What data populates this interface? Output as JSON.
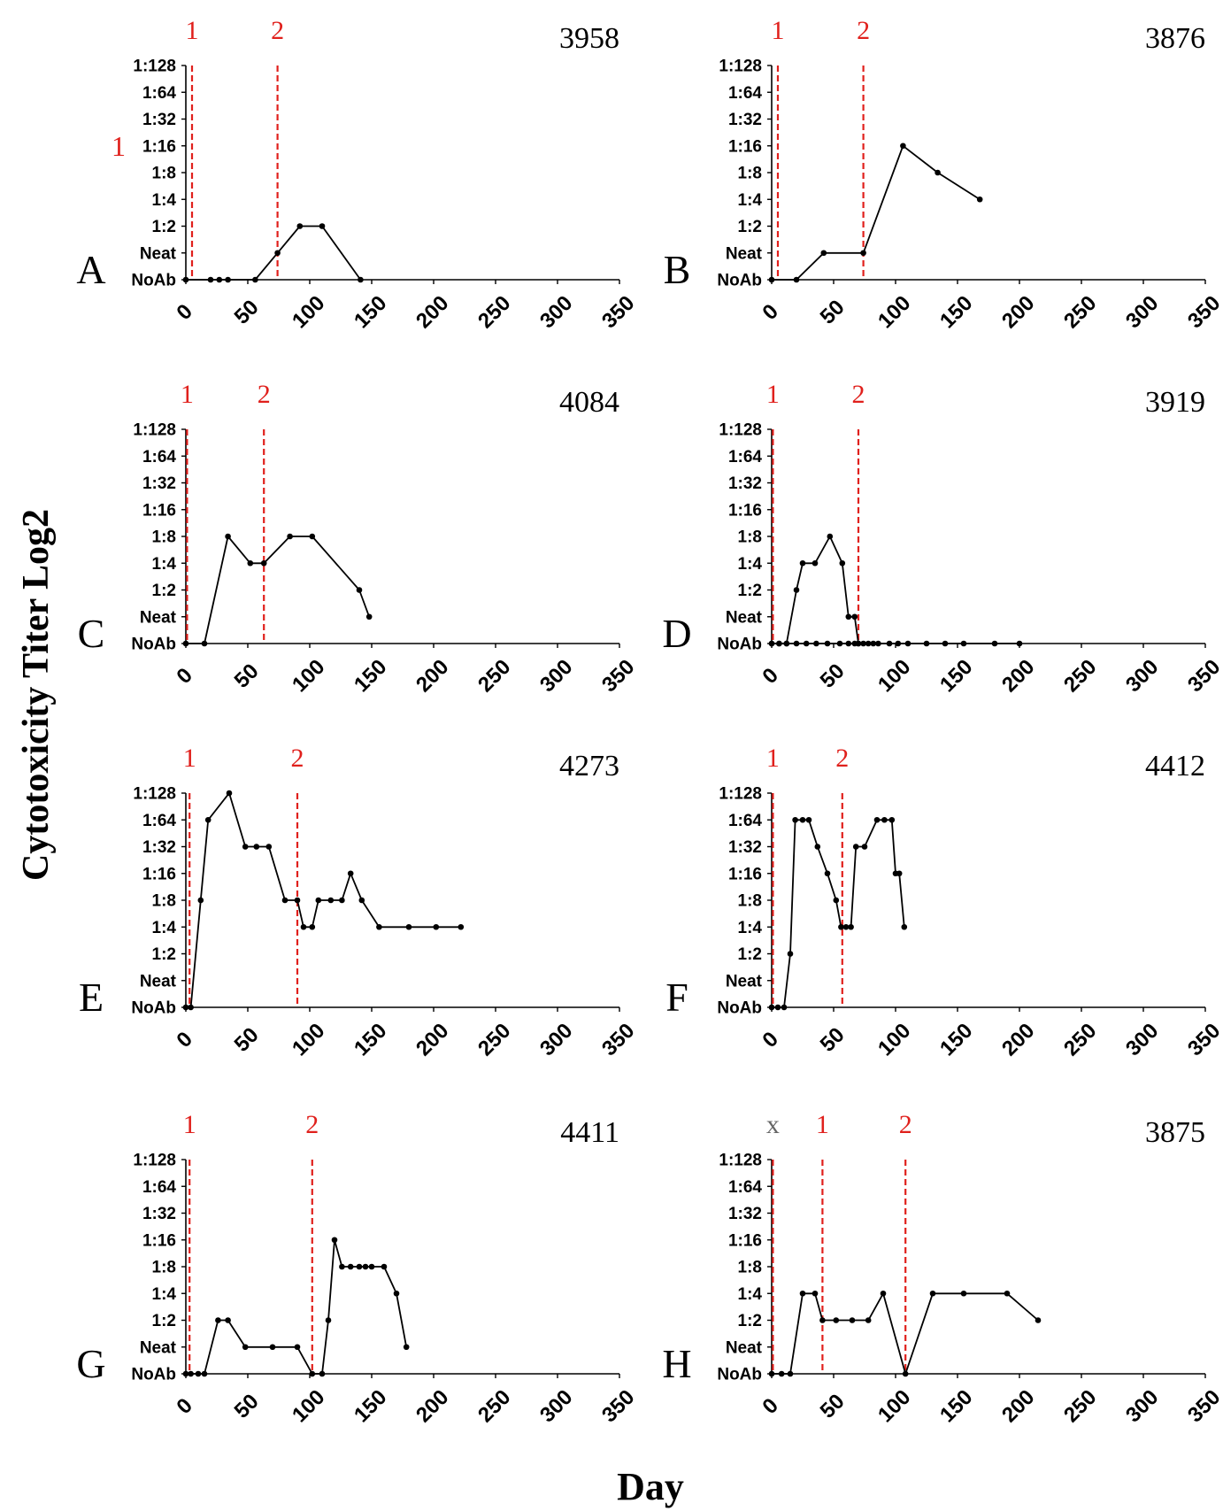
{
  "figure": {
    "ylabel": "Cytotoxicity Titer Log2",
    "xlabel": "Day",
    "colors": {
      "line": "#000000",
      "marker_line": "#e0201c",
      "marker_text": "#e0201c",
      "x_marker_text": "#666666"
    }
  },
  "chart_data": [
    {
      "type": "line",
      "panel": "A",
      "title": "3958",
      "x_ticks": [
        "0",
        "50",
        "100",
        "150",
        "200",
        "250",
        "300",
        "350"
      ],
      "xlim": [
        0,
        350
      ],
      "y_ticks": [
        "NoAb",
        "Neat",
        "1:2",
        "1:4",
        "1:8",
        "1:16",
        "1:32",
        "1:64",
        "1:128"
      ],
      "ylim": [
        0,
        8
      ],
      "markers": [
        {
          "label": "1",
          "x": 5
        },
        {
          "label": "2",
          "x": 74
        }
      ],
      "stray_labels": [
        {
          "text": "1",
          "beside_tick": "1:16"
        }
      ],
      "series": [
        {
          "x": [
            0,
            20,
            27,
            34,
            56,
            74,
            92,
            110,
            141
          ],
          "y": [
            0,
            0,
            0,
            0,
            0,
            1,
            2,
            2,
            0
          ]
        }
      ]
    },
    {
      "type": "line",
      "panel": "B",
      "title": "3876",
      "x_ticks": [
        "0",
        "50",
        "100",
        "150",
        "200",
        "250",
        "300",
        "350"
      ],
      "xlim": [
        0,
        350
      ],
      "y_ticks": [
        "NoAb",
        "Neat",
        "1:2",
        "1:4",
        "1:8",
        "1:16",
        "1:32",
        "1:64",
        "1:128"
      ],
      "ylim": [
        0,
        8
      ],
      "markers": [
        {
          "label": "1",
          "x": 5
        },
        {
          "label": "2",
          "x": 74
        }
      ],
      "series": [
        {
          "x": [
            0,
            20,
            42,
            74,
            106,
            134,
            168
          ],
          "y": [
            0,
            0,
            1,
            1,
            5,
            4,
            3
          ]
        }
      ]
    },
    {
      "type": "line",
      "panel": "C",
      "title": "4084",
      "x_ticks": [
        "0",
        "50",
        "100",
        "150",
        "200",
        "250",
        "300",
        "350"
      ],
      "xlim": [
        0,
        350
      ],
      "y_ticks": [
        "NoAb",
        "Neat",
        "1:2",
        "1:4",
        "1:8",
        "1:16",
        "1:32",
        "1:64",
        "1:128"
      ],
      "ylim": [
        0,
        8
      ],
      "markers": [
        {
          "label": "1",
          "x": 1
        },
        {
          "label": "2",
          "x": 63
        }
      ],
      "series": [
        {
          "x": [
            0,
            15,
            34,
            52,
            63,
            84,
            102,
            140,
            148
          ],
          "y": [
            0,
            0,
            4,
            3,
            3,
            4,
            4,
            2,
            1
          ]
        }
      ]
    },
    {
      "type": "line",
      "panel": "D",
      "title": "3919",
      "x_ticks": [
        "0",
        "50",
        "100",
        "150",
        "200",
        "250",
        "300",
        "350"
      ],
      "xlim": [
        0,
        350
      ],
      "y_ticks": [
        "NoAb",
        "Neat",
        "1:2",
        "1:4",
        "1:8",
        "1:16",
        "1:32",
        "1:64",
        "1:128"
      ],
      "ylim": [
        0,
        8
      ],
      "markers": [
        {
          "label": "1",
          "x": 1
        },
        {
          "label": "2",
          "x": 70
        }
      ],
      "series": [
        {
          "x": [
            0,
            6,
            12,
            20,
            25,
            35,
            47,
            57,
            62,
            67,
            70
          ],
          "y": [
            0,
            0,
            0,
            2,
            3,
            3,
            4,
            3,
            1,
            1,
            0
          ]
        },
        {
          "x": [
            0,
            6,
            12,
            20,
            28,
            36,
            45,
            55,
            62,
            67,
            70,
            74,
            78,
            82,
            86,
            95,
            102,
            110,
            125,
            140,
            155,
            180,
            200
          ],
          "y": [
            0,
            0,
            0,
            0,
            0,
            0,
            0,
            0,
            0,
            0,
            0,
            0,
            0,
            0,
            0,
            0,
            0,
            0,
            0,
            0,
            0,
            0,
            0
          ]
        }
      ]
    },
    {
      "type": "line",
      "panel": "E",
      "title": "4273",
      "x_ticks": [
        "0",
        "50",
        "100",
        "150",
        "200",
        "250",
        "300",
        "350"
      ],
      "xlim": [
        0,
        350
      ],
      "y_ticks": [
        "NoAb",
        "Neat",
        "1:2",
        "1:4",
        "1:8",
        "1:16",
        "1:32",
        "1:64",
        "1:128"
      ],
      "ylim": [
        0,
        8
      ],
      "markers": [
        {
          "label": "1",
          "x": 3
        },
        {
          "label": "2",
          "x": 90
        }
      ],
      "series": [
        {
          "x": [
            0,
            4,
            12,
            18,
            35,
            48,
            57,
            67,
            80,
            90,
            95,
            102,
            107,
            117,
            126,
            133,
            142,
            156,
            180,
            202,
            222
          ],
          "y": [
            0,
            0,
            4,
            7,
            8,
            6,
            6,
            6,
            4,
            4,
            3,
            3,
            4,
            4,
            4,
            5,
            4,
            3,
            3,
            3,
            3
          ]
        }
      ]
    },
    {
      "type": "line",
      "panel": "F",
      "title": "4412",
      "x_ticks": [
        "0",
        "50",
        "100",
        "150",
        "200",
        "250",
        "300",
        "350"
      ],
      "xlim": [
        0,
        350
      ],
      "y_ticks": [
        "NoAb",
        "Neat",
        "1:2",
        "1:4",
        "1:8",
        "1:16",
        "1:32",
        "1:64",
        "1:128"
      ],
      "ylim": [
        0,
        8
      ],
      "markers": [
        {
          "label": "1",
          "x": 1
        },
        {
          "label": "2",
          "x": 57
        }
      ],
      "series": [
        {
          "x": [
            0,
            5,
            10,
            15,
            19,
            25,
            30,
            37,
            45,
            52,
            56,
            60,
            64,
            68,
            75,
            85,
            91,
            97,
            100,
            103,
            107
          ],
          "y": [
            0,
            0,
            0,
            2,
            7,
            7,
            7,
            6,
            5,
            4,
            3,
            3,
            3,
            6,
            6,
            7,
            7,
            7,
            5,
            5,
            3
          ]
        }
      ]
    },
    {
      "type": "line",
      "panel": "G",
      "title": "4411",
      "x_ticks": [
        "0",
        "50",
        "100",
        "150",
        "200",
        "250",
        "300",
        "350"
      ],
      "xlim": [
        0,
        350
      ],
      "y_ticks": [
        "NoAb",
        "Neat",
        "1:2",
        "1:4",
        "1:8",
        "1:16",
        "1:32",
        "1:64",
        "1:128"
      ],
      "ylim": [
        0,
        8
      ],
      "markers": [
        {
          "label": "1",
          "x": 3
        },
        {
          "label": "2",
          "x": 102
        }
      ],
      "series": [
        {
          "x": [
            0,
            4,
            10,
            15,
            26,
            34,
            48,
            70,
            90,
            102,
            110,
            115,
            120,
            126,
            133,
            140,
            145,
            150,
            160,
            170,
            178
          ],
          "y": [
            0,
            0,
            0,
            0,
            2,
            2,
            1,
            1,
            1,
            0,
            0,
            2,
            5,
            4,
            4,
            4,
            4,
            4,
            4,
            3,
            1
          ]
        }
      ]
    },
    {
      "type": "line",
      "panel": "H",
      "title": "3875",
      "x_ticks": [
        "0",
        "50",
        "100",
        "150",
        "200",
        "250",
        "300",
        "350"
      ],
      "xlim": [
        0,
        350
      ],
      "y_ticks": [
        "NoAb",
        "Neat",
        "1:2",
        "1:4",
        "1:8",
        "1:16",
        "1:32",
        "1:64",
        "1:128"
      ],
      "ylim": [
        0,
        8
      ],
      "markers": [
        {
          "label": "x",
          "x": 1,
          "gray_label": true
        },
        {
          "label": "1",
          "x": 41
        },
        {
          "label": "2",
          "x": 108
        }
      ],
      "series": [
        {
          "x": [
            0,
            8,
            15,
            25,
            35,
            41,
            52,
            65,
            78,
            90,
            108,
            130,
            155,
            190,
            215
          ],
          "y": [
            0,
            0,
            0,
            3,
            3,
            2,
            2,
            2,
            2,
            3,
            0,
            3,
            3,
            3,
            2
          ]
        }
      ]
    }
  ]
}
